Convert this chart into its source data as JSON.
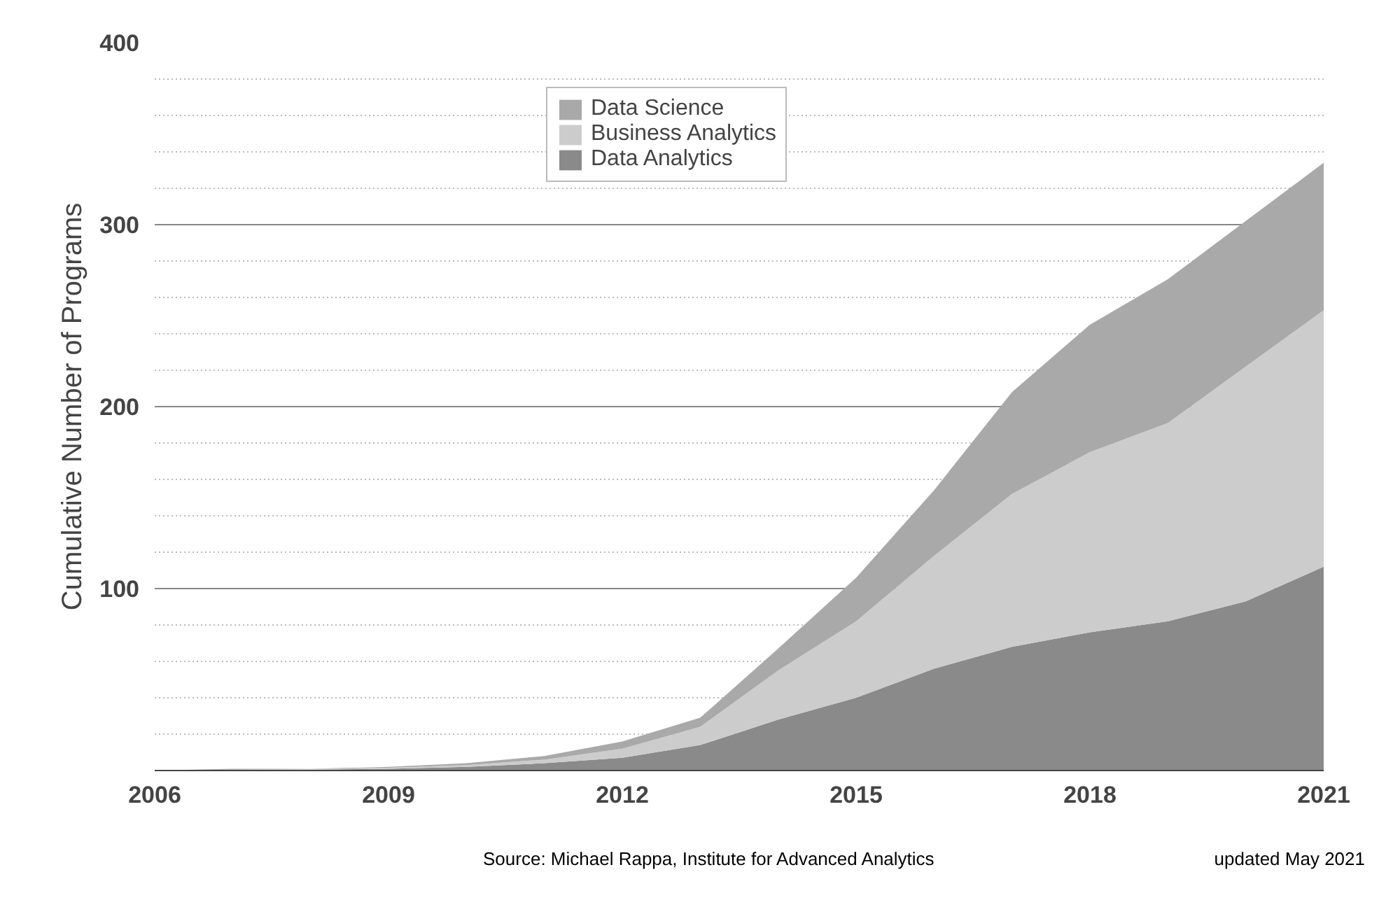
{
  "chart_data": {
    "type": "area",
    "stacked": true,
    "ylabel": "Cumulative Number of Programs",
    "x": [
      2006,
      2007,
      2008,
      2009,
      2010,
      2011,
      2012,
      2013,
      2014,
      2015,
      2016,
      2017,
      2018,
      2019,
      2020,
      2021
    ],
    "series": [
      {
        "name": "Data Analytics",
        "color": "#8a8a8a",
        "values": [
          0,
          0.5,
          0.5,
          1,
          2,
          4,
          7,
          14,
          28,
          40,
          56,
          68,
          76,
          82,
          93,
          112
        ]
      },
      {
        "name": "Business Analytics",
        "color": "#cccccc",
        "values": [
          0,
          0,
          0.5,
          0.5,
          1,
          2,
          5,
          10,
          27,
          42,
          62,
          84,
          99,
          109,
          129,
          141
        ]
      },
      {
        "name": "Data Science",
        "color": "#a9a9a9",
        "values": [
          0,
          0.5,
          0,
          0.5,
          1,
          2,
          4,
          5,
          12,
          24,
          36,
          56,
          70,
          79,
          80,
          81
        ]
      }
    ],
    "xlim": [
      2006,
      2021
    ],
    "xticks": [
      2006,
      2009,
      2012,
      2015,
      2018,
      2021
    ],
    "ylim": [
      0,
      400
    ],
    "yticks": [
      {
        "value": 20,
        "label": null
      },
      {
        "value": 40,
        "label": null
      },
      {
        "value": 60,
        "label": null
      },
      {
        "value": 80,
        "label": null
      },
      100,
      {
        "value": 120,
        "label": null
      },
      {
        "value": 140,
        "label": null
      },
      {
        "value": 160,
        "label": null
      },
      {
        "value": 180,
        "label": null
      },
      200,
      {
        "value": 220,
        "label": null
      },
      {
        "value": 240,
        "label": null
      },
      {
        "value": 260,
        "label": null
      },
      {
        "value": 280,
        "label": null
      },
      300,
      {
        "value": 320,
        "label": null
      },
      {
        "value": 340,
        "label": null
      },
      {
        "value": 360,
        "label": null
      },
      {
        "value": 380,
        "label": null
      },
      400
    ],
    "grid": "y",
    "legend": "top",
    "annotations": [
      "Source: Michael Rappa, Institute for Advanced Analytics",
      "updated May 2021"
    ]
  }
}
